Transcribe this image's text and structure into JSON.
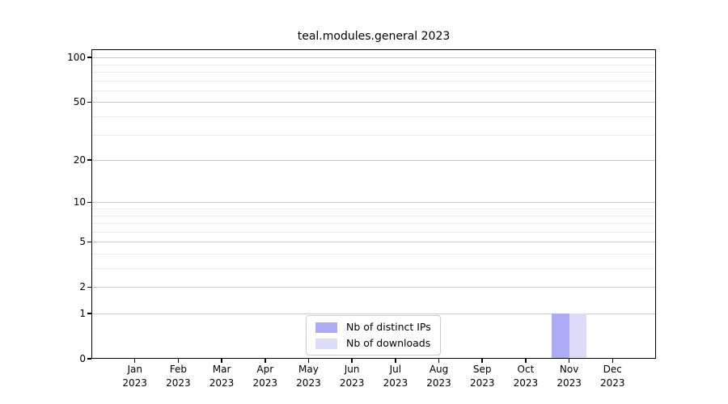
{
  "chart_data": {
    "type": "bar",
    "title": "teal.modules.general 2023",
    "categories": [
      "Jan 2023",
      "Feb 2023",
      "Mar 2023",
      "Apr 2023",
      "May 2023",
      "Jun 2023",
      "Jul 2023",
      "Aug 2023",
      "Sep 2023",
      "Oct 2023",
      "Nov 2023",
      "Dec 2023"
    ],
    "months": [
      "Jan",
      "Feb",
      "Mar",
      "Apr",
      "May",
      "Jun",
      "Jul",
      "Aug",
      "Sep",
      "Oct",
      "Nov",
      "Dec"
    ],
    "year_label": "2023",
    "series": [
      {
        "name": "Nb of distinct IPs",
        "color": "#acacf4",
        "values": [
          0,
          0,
          0,
          0,
          0,
          0,
          0,
          0,
          0,
          0,
          1,
          0
        ]
      },
      {
        "name": "Nb of downloads",
        "color": "#dcdcf8",
        "values": [
          0,
          0,
          0,
          0,
          0,
          0,
          0,
          0,
          0,
          0,
          1,
          0
        ]
      }
    ],
    "xlabel": "",
    "ylabel": "",
    "yscale": "log1p",
    "ylim": [
      0,
      115
    ],
    "yticks": [
      0,
      1,
      2,
      5,
      10,
      20,
      50,
      100
    ],
    "minor_yticks": [
      3,
      4,
      6,
      7,
      8,
      9,
      30,
      40,
      60,
      70,
      80,
      90
    ],
    "grid": true,
    "legend_position": "lower center"
  },
  "legend": {
    "items": [
      {
        "label": "Nb of distinct IPs"
      },
      {
        "label": "Nb of downloads"
      }
    ]
  },
  "colors": {
    "distinct_ips_bar": "#acacf4",
    "downloads_bar": "#dcdcf8",
    "major_grid": "#c8c8c8",
    "minor_grid": "#ebebeb",
    "spine": "#000000",
    "text": "#000000",
    "background": "#ffffff"
  }
}
